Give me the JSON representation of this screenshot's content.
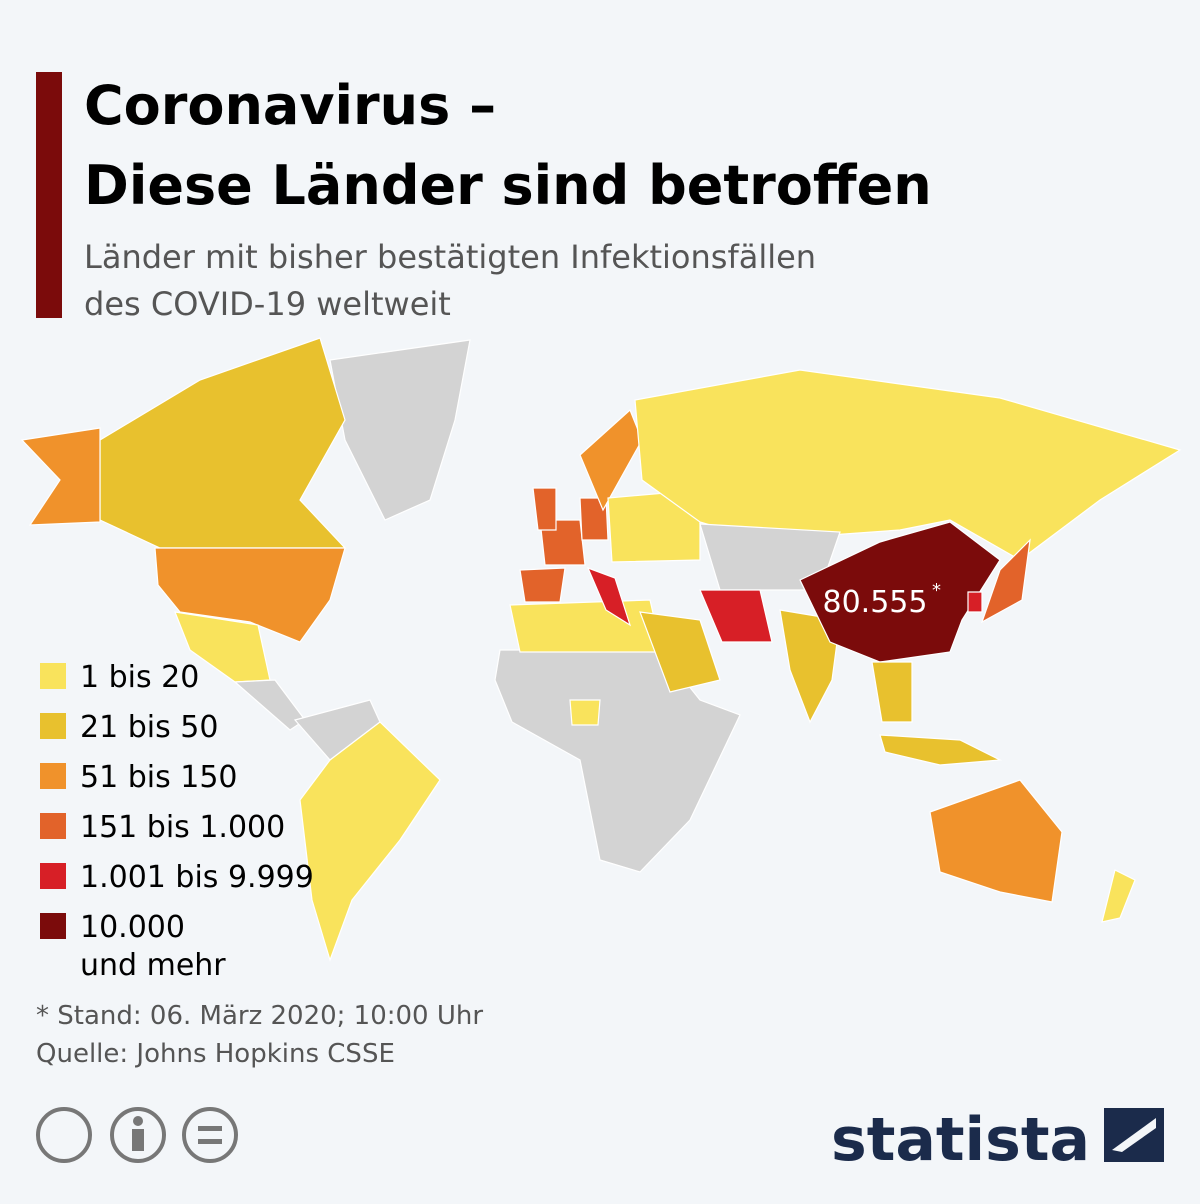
{
  "header": {
    "title_lines": [
      "Coronavirus –",
      "Diese Länder sind betroffen"
    ],
    "subtitle_lines": [
      "Länder mit bisher bestätigten Infektionsfällen",
      "des COVID-19 weltweit"
    ]
  },
  "legend": {
    "items": [
      {
        "label": [
          "1 bis 20"
        ],
        "color": "#f9e35c"
      },
      {
        "label": [
          "21 bis 50"
        ],
        "color": "#e8c12e"
      },
      {
        "label": [
          "51 bis 150"
        ],
        "color": "#f0922b"
      },
      {
        "label": [
          "151 bis 1.000"
        ],
        "color": "#e2632a"
      },
      {
        "label": [
          "1.001 bis 9.999"
        ],
        "color": "#d71f26"
      },
      {
        "label": [
          "10.000",
          "und mehr"
        ],
        "color": "#7b0b0b"
      }
    ]
  },
  "map": {
    "annotation": "80.555",
    "annotation_mark": "*",
    "no_data_color": "#d3d3d3"
  },
  "footer": {
    "note": "* Stand: 06. März 2020; 10:00 Uhr",
    "source": "Quelle: Johns Hopkins CSSE",
    "brand": "statista"
  }
}
